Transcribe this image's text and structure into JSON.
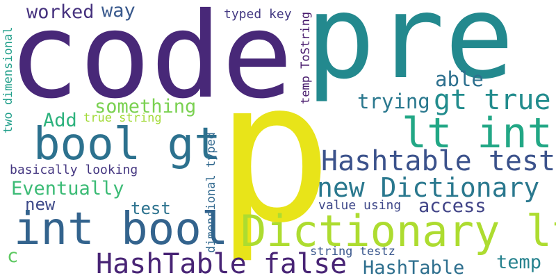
{
  "words": [
    {
      "text": "pre",
      "color": "#23898e"
    },
    {
      "text": "code",
      "color": "#482878"
    },
    {
      "text": "p",
      "color": "#e8e419"
    },
    {
      "text": "lt int",
      "color": "#22a785"
    },
    {
      "text": "Dictionary lt",
      "color": "#addc30"
    },
    {
      "text": "bool gt",
      "color": "#2c718e"
    },
    {
      "text": "int bool",
      "color": "#33638d"
    },
    {
      "text": "HashTable false",
      "color": "#482475"
    },
    {
      "text": "Hashtable test",
      "color": "#3b528b"
    },
    {
      "text": "new Dictionary",
      "color": "#2a788e"
    },
    {
      "text": "gt true",
      "color": "#228c8d"
    },
    {
      "text": "trying",
      "color": "#2a788e"
    },
    {
      "text": "able",
      "color": "#2d708e"
    },
    {
      "text": "something",
      "color": "#7ad151"
    },
    {
      "text": "Add",
      "color": "#2db27d"
    },
    {
      "text": "true string",
      "color": "#a2da37"
    },
    {
      "text": "worked",
      "color": "#46327e"
    },
    {
      "text": "way",
      "color": "#38588c"
    },
    {
      "text": "typed key",
      "color": "#443a83"
    },
    {
      "text": "Eventually",
      "color": "#3bbb75"
    },
    {
      "text": "new",
      "color": "#3e4a89"
    },
    {
      "text": "test",
      "color": "#2c728e"
    },
    {
      "text": "basically looking",
      "color": "#453781"
    },
    {
      "text": "access",
      "color": "#414487"
    },
    {
      "text": "value using",
      "color": "#3f4889"
    },
    {
      "text": "string testz",
      "color": "#39568c"
    },
    {
      "text": "HashTable",
      "color": "#2e6f8e"
    },
    {
      "text": "temp",
      "color": "#26828e"
    },
    {
      "text": "c",
      "color": "#5ec962"
    },
    {
      "text": "two dimensional",
      "color": "#1f9e89"
    },
    {
      "text": "dimensional typed",
      "color": "#31688e"
    },
    {
      "text": "temp ToString",
      "color": "#481a6c"
    }
  ]
}
